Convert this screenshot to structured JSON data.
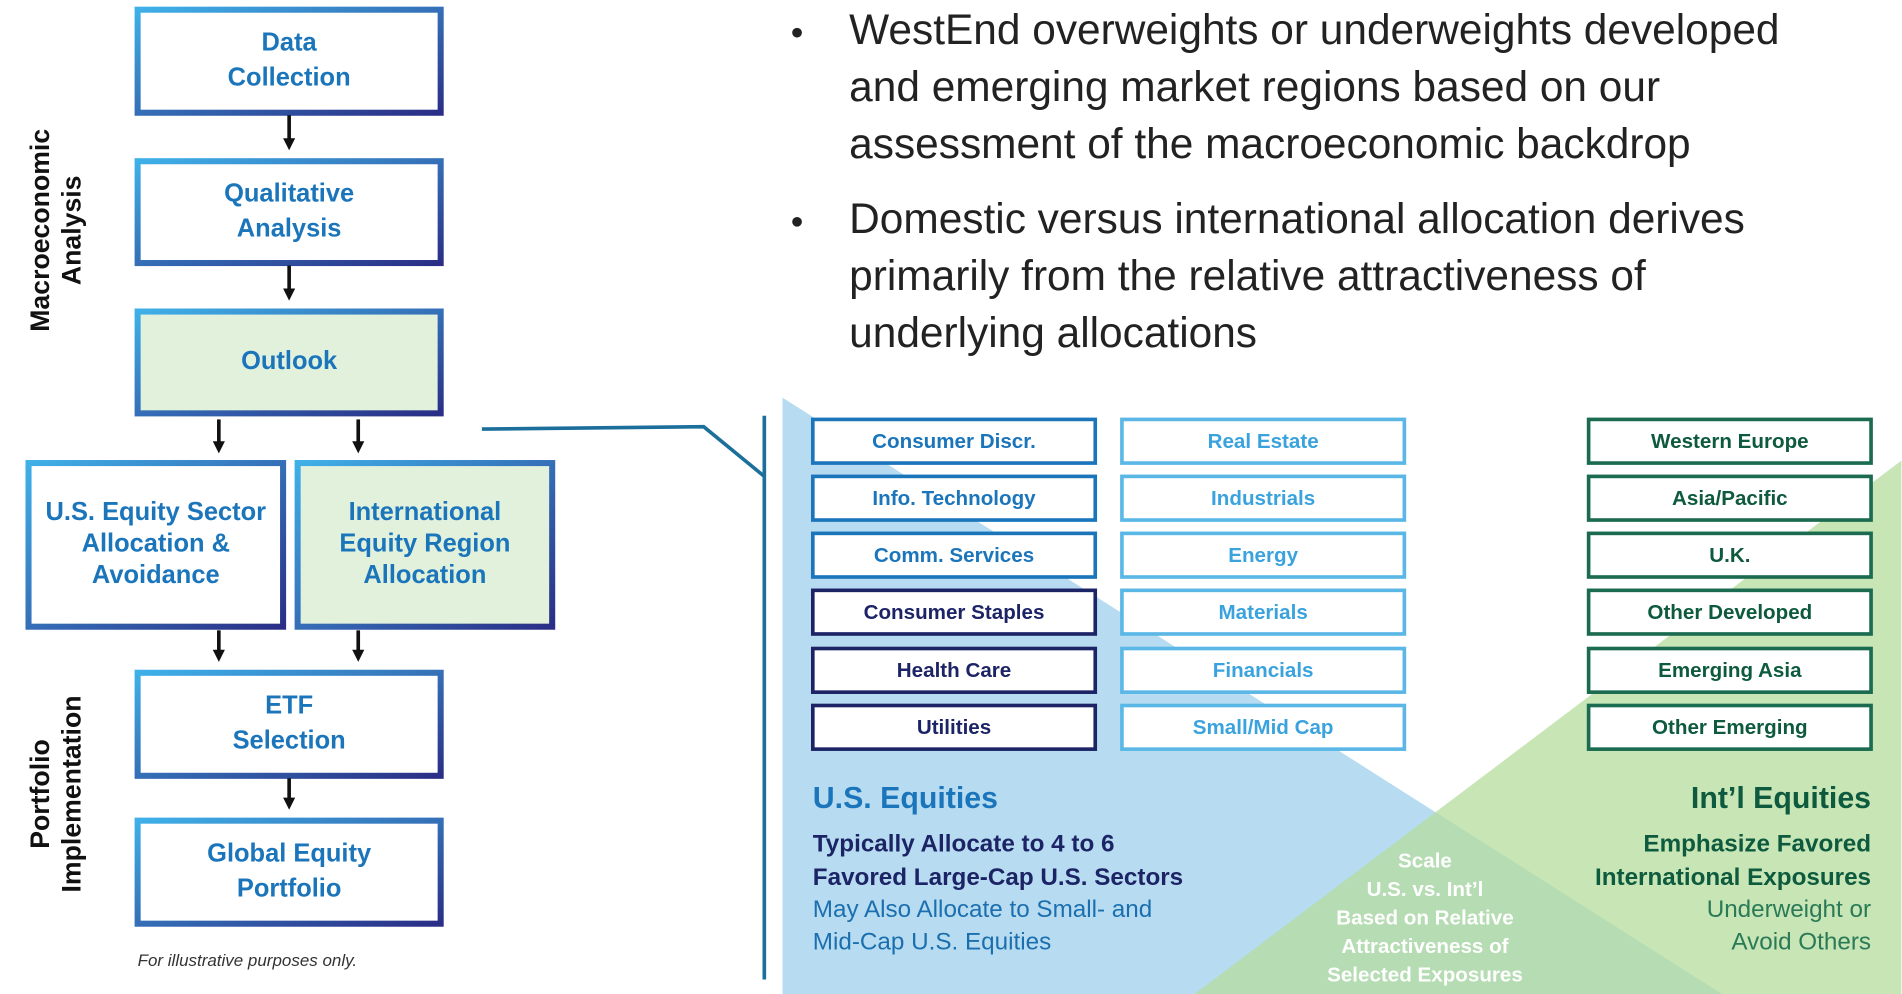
{
  "side_labels": {
    "macro": [
      "Macroeconomic",
      "Analysis"
    ],
    "portfolio": [
      "Portfolio",
      "Implementation"
    ]
  },
  "flow": {
    "data_collection": [
      "Data",
      "Collection"
    ],
    "qualitative": [
      "Qualitative",
      "Analysis"
    ],
    "outlook": [
      "Outlook"
    ],
    "us_sector": [
      "U.S. Equity Sector",
      "Allocation &",
      "Avoidance"
    ],
    "intl_region": [
      "International",
      "Equity Region",
      "Allocation"
    ],
    "etf": [
      "ETF",
      "Selection"
    ],
    "global": [
      "Global Equity",
      "Portfolio"
    ]
  },
  "note": "For illustrative purposes only.",
  "bullets": [
    [
      "WestEnd overweights or underweights developed",
      "and emerging market regions based on our",
      "assessment of the macroeconomic backdrop"
    ],
    [
      "Domestic versus international allocation derives",
      "primarily from the relative attractiveness of",
      "underlying allocations"
    ]
  ],
  "sectors_a": [
    "Consumer Discr.",
    "Info. Technology",
    "Comm. Services",
    "Consumer Staples",
    "Health Care",
    "Utilities"
  ],
  "sectors_b": [
    "Real Estate",
    "Industrials",
    "Energy",
    "Materials",
    "Financials",
    "Small/Mid Cap"
  ],
  "regions": [
    "Western Europe",
    "Asia/Pacific",
    "U.K.",
    "Other Developed",
    "Emerging Asia",
    "Other Emerging"
  ],
  "us": {
    "title": "U.S. Equities",
    "bold": [
      "Typically Allocate to 4 to 6",
      "Favored Large-Cap U.S. Sectors"
    ],
    "text": [
      "May Also Allocate to Small- and",
      "Mid-Cap U.S. Equities"
    ]
  },
  "intl": {
    "title": "Int’l Equities",
    "bold": [
      "Emphasize Favored",
      "International Exposures"
    ],
    "text": [
      "Underweight or",
      "Avoid Others"
    ]
  },
  "scale": [
    "Scale",
    "U.S. vs. Int’l",
    "Based on Relative",
    "Attractiveness of",
    "Selected Exposures"
  ]
}
